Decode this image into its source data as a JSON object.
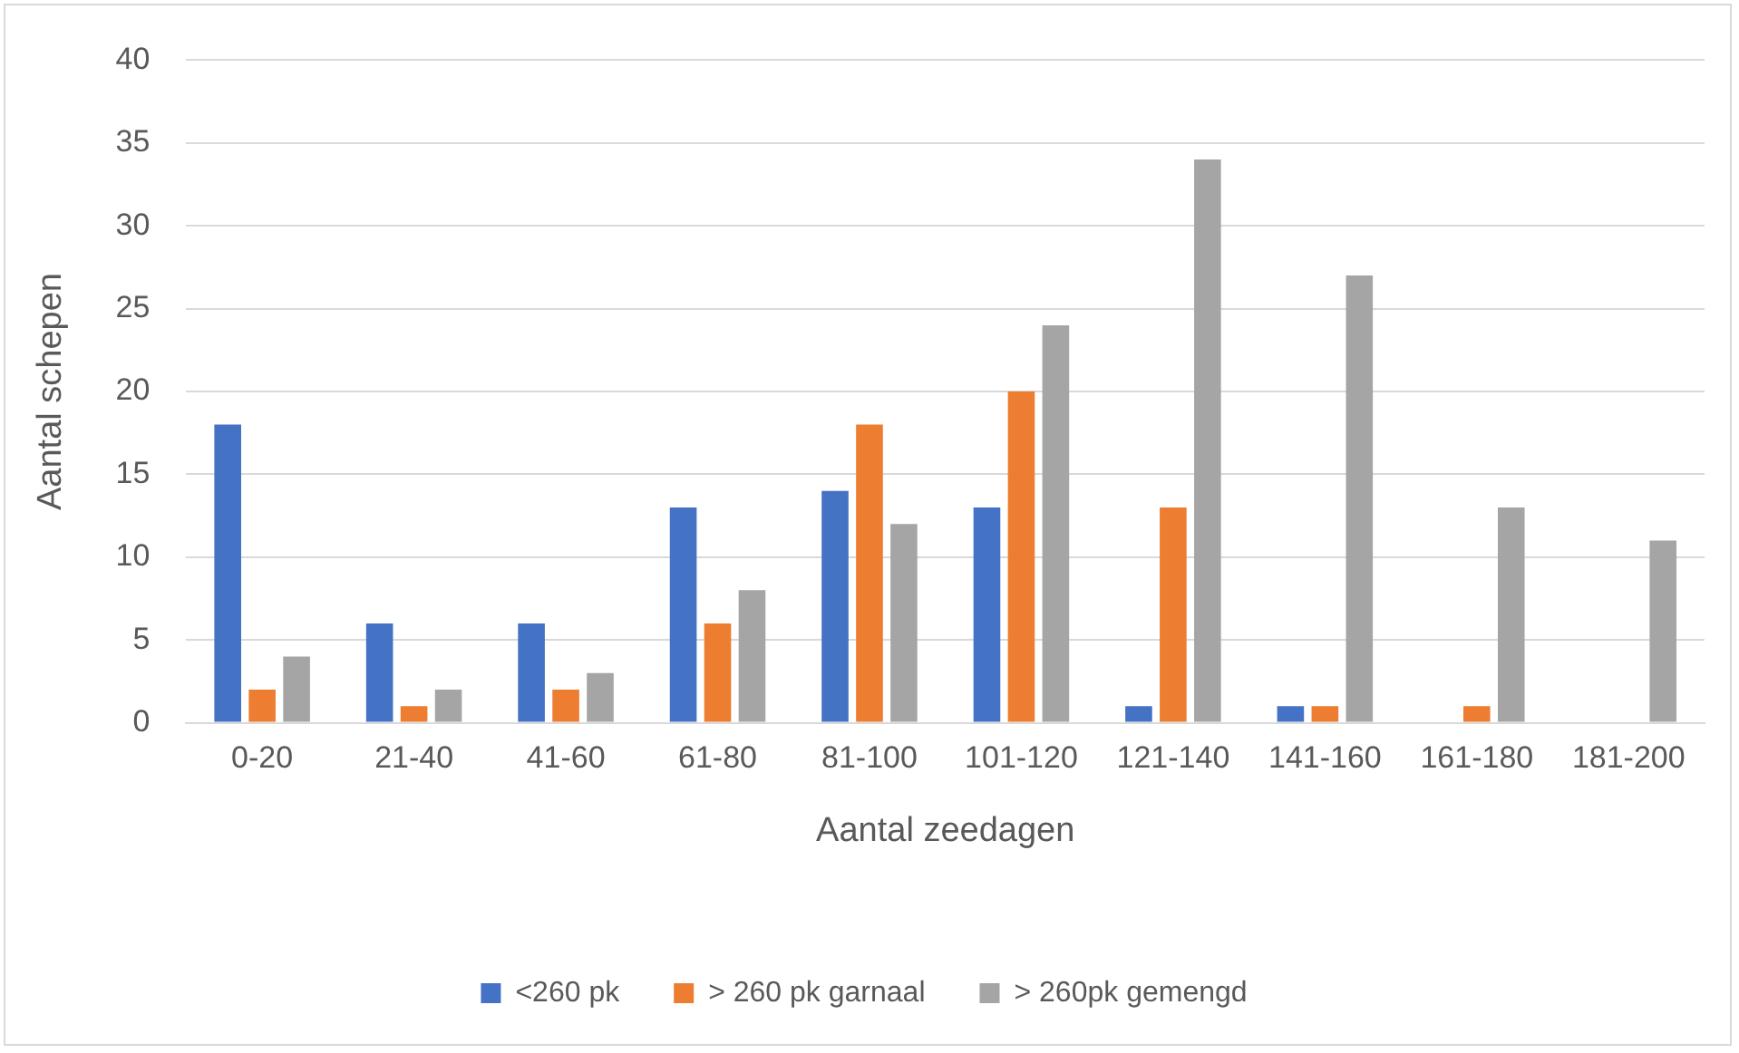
{
  "chart_data": {
    "type": "bar",
    "xlabel": "Aantal zeedagen",
    "ylabel": "Aantal schepen",
    "categories": [
      "0-20",
      "21-40",
      "41-60",
      "61-80",
      "81-100",
      "101-120",
      "121-140",
      "141-160",
      "161-180",
      "181-200"
    ],
    "series": [
      {
        "name": "<260 pk",
        "color": "#4472c4",
        "values": [
          18,
          6,
          6,
          13,
          14,
          13,
          1,
          1,
          0,
          0
        ]
      },
      {
        "name": "> 260 pk garnaal",
        "color": "#ed7d31",
        "values": [
          2,
          1,
          2,
          6,
          18,
          20,
          13,
          1,
          1,
          0
        ]
      },
      {
        "name": "> 260pk gemengd",
        "color": "#a5a5a5",
        "values": [
          4,
          2,
          3,
          8,
          12,
          24,
          34,
          27,
          13,
          11
        ]
      }
    ],
    "ylim": [
      0,
      40
    ],
    "yticks": [
      0,
      5,
      10,
      15,
      20,
      25,
      30,
      35,
      40
    ],
    "grid": "y",
    "legend": "bottom"
  }
}
